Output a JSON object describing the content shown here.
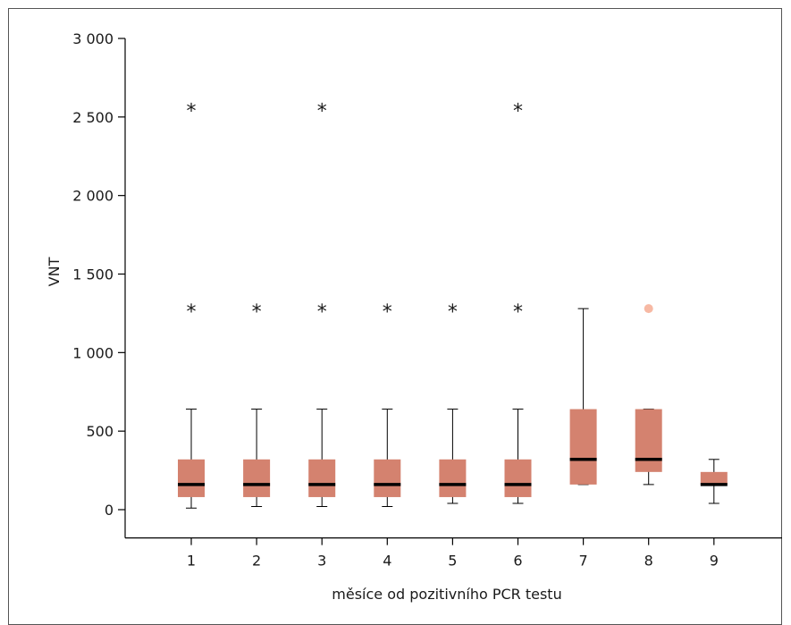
{
  "chart_data": {
    "type": "box",
    "title": "",
    "xlabel": "měsíce od pozitivního PCR testu",
    "ylabel": "VNT",
    "ylim": [
      -180,
      3000
    ],
    "yticks": [
      0,
      500,
      1000,
      1500,
      2000,
      2500,
      3000
    ],
    "ytick_labels": [
      "0",
      "500",
      "1 000",
      "1 500",
      "2 000",
      "2 500",
      "3 000"
    ],
    "categories": [
      "1",
      "2",
      "3",
      "4",
      "5",
      "6",
      "7",
      "8",
      "9"
    ],
    "grid": false,
    "box_color": "#d4826f",
    "median_color": "#000000",
    "outlier_dot_color": "#f7b9a4",
    "boxes": [
      {
        "category": "1",
        "whisker_low": 10,
        "q1": 80,
        "median": 160,
        "q3": 320,
        "whisker_high": 640,
        "extreme_outliers": [
          1280,
          2560
        ],
        "outliers": []
      },
      {
        "category": "2",
        "whisker_low": 20,
        "q1": 80,
        "median": 160,
        "q3": 320,
        "whisker_high": 640,
        "extreme_outliers": [
          1280
        ],
        "outliers": []
      },
      {
        "category": "3",
        "whisker_low": 20,
        "q1": 80,
        "median": 160,
        "q3": 320,
        "whisker_high": 640,
        "extreme_outliers": [
          1280,
          2560
        ],
        "outliers": []
      },
      {
        "category": "4",
        "whisker_low": 20,
        "q1": 80,
        "median": 160,
        "q3": 320,
        "whisker_high": 640,
        "extreme_outliers": [
          1280
        ],
        "outliers": []
      },
      {
        "category": "5",
        "whisker_low": 40,
        "q1": 80,
        "median": 160,
        "q3": 320,
        "whisker_high": 640,
        "extreme_outliers": [
          1280
        ],
        "outliers": []
      },
      {
        "category": "6",
        "whisker_low": 40,
        "q1": 80,
        "median": 160,
        "q3": 320,
        "whisker_high": 640,
        "extreme_outliers": [
          1280,
          2560
        ],
        "outliers": []
      },
      {
        "category": "7",
        "whisker_low": 160,
        "q1": 160,
        "median": 320,
        "q3": 640,
        "whisker_high": 1280,
        "extreme_outliers": [],
        "outliers": []
      },
      {
        "category": "8",
        "whisker_low": 160,
        "q1": 240,
        "median": 320,
        "q3": 640,
        "whisker_high": 640,
        "extreme_outliers": [],
        "outliers": [
          1280
        ]
      },
      {
        "category": "9",
        "whisker_low": 40,
        "q1": 160,
        "median": 160,
        "q3": 240,
        "whisker_high": 320,
        "extreme_outliers": [],
        "outliers": []
      }
    ]
  }
}
